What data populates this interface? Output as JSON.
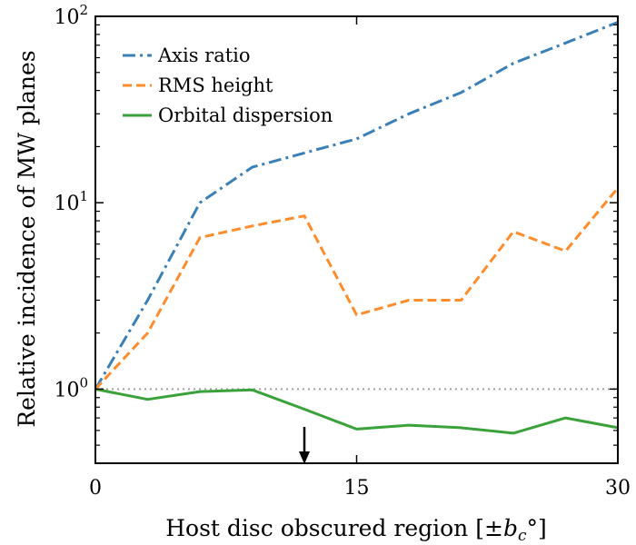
{
  "chart_data": {
    "type": "line",
    "xlabel_prefix": "Host disc obscured region [±",
    "xlabel_var": "b",
    "xlabel_sub": "c",
    "xlabel_suffix": "°]",
    "ylabel": "Relative incidence of MW planes",
    "xlim": [
      0,
      30
    ],
    "ylim": [
      0.4,
      100
    ],
    "yscale": "log",
    "x_ticks": [
      {
        "value": 0,
        "label": "0"
      },
      {
        "value": 15,
        "label": "15"
      },
      {
        "value": 30,
        "label": "30"
      }
    ],
    "y_ticks": [
      {
        "value": 1,
        "base": "10",
        "exp": "0"
      },
      {
        "value": 10,
        "base": "10",
        "exp": "1"
      },
      {
        "value": 100,
        "base": "10",
        "exp": "2"
      }
    ],
    "y_minor_ticks": [
      0.4,
      0.5,
      0.6,
      0.7,
      0.8,
      0.9,
      2,
      3,
      4,
      5,
      6,
      7,
      8,
      9,
      20,
      30,
      40,
      50,
      60,
      70,
      80,
      90
    ],
    "reference_line": {
      "y": 1,
      "color": "#a0a0a0"
    },
    "arrow": {
      "x": 12
    },
    "legend_position": "top-left",
    "series": [
      {
        "name": "Axis ratio",
        "color": "#3a7fb5",
        "dash": "dashdot",
        "x": [
          0,
          3,
          6,
          9,
          12,
          15,
          18,
          21,
          24,
          27,
          30
        ],
        "y": [
          1.0,
          3.0,
          10.0,
          15.5,
          18.5,
          22.0,
          30.0,
          39.0,
          56.0,
          72.0,
          93.0
        ]
      },
      {
        "name": "RMS height",
        "color": "#ff8c2a",
        "dash": "dashed",
        "x": [
          0,
          3,
          6,
          9,
          12,
          15,
          18,
          21,
          24,
          27,
          30
        ],
        "y": [
          1.0,
          2.0,
          6.5,
          7.5,
          8.5,
          2.5,
          3.0,
          3.0,
          7.0,
          5.5,
          12.0
        ]
      },
      {
        "name": "Orbital dispersion",
        "color": "#3aa23a",
        "dash": "solid",
        "x": [
          0,
          3,
          6,
          9,
          12,
          15,
          18,
          21,
          24,
          27,
          30
        ],
        "y": [
          1.0,
          0.88,
          0.97,
          0.99,
          0.78,
          0.61,
          0.64,
          0.62,
          0.58,
          0.7,
          0.62
        ]
      }
    ]
  }
}
